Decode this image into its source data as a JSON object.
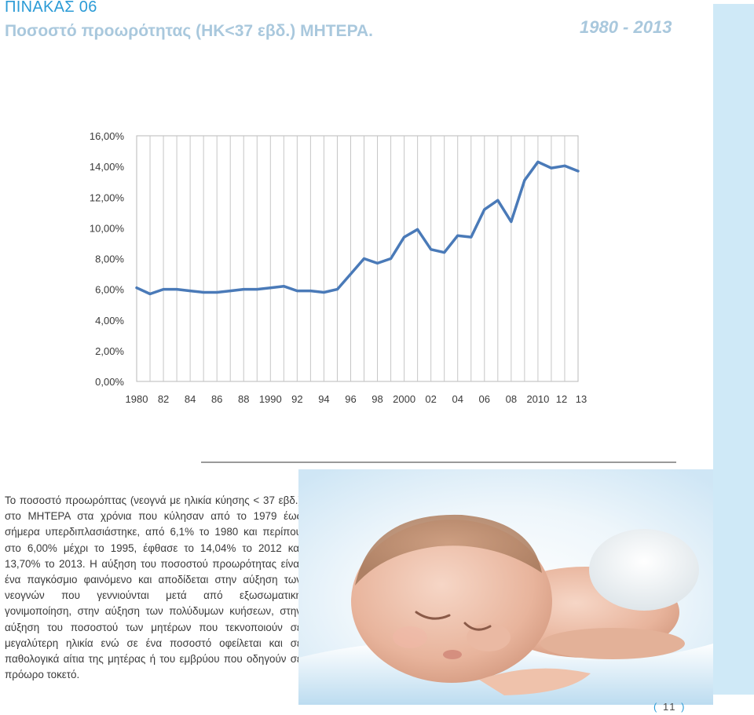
{
  "header": {
    "table_label": "ΠΙΝΑΚΑΣ 06",
    "subtitle": "Ποσοστό προωρότητας (ΗΚ<37 εβδ.) ΜΗΤΕΡΑ.",
    "year_range": "1980 - 2013"
  },
  "chart_data": {
    "type": "line",
    "title": "",
    "xlabel": "",
    "ylabel": "",
    "ylim": [
      0,
      16
    ],
    "grid": "vertical",
    "y_ticks": [
      0,
      2,
      4,
      6,
      8,
      10,
      12,
      14,
      16
    ],
    "y_tick_labels": [
      "0,00%",
      "2,00%",
      "4,00%",
      "6,00%",
      "8,00%",
      "10,00%",
      "12,00%",
      "14,00%",
      "16,00%"
    ],
    "x_tick_labels": [
      "1980",
      "82",
      "84",
      "86",
      "88",
      "1990",
      "92",
      "94",
      "96",
      "98",
      "2000",
      "02",
      "04",
      "06",
      "08",
      "2010",
      "12",
      "13"
    ],
    "x": [
      1980,
      1981,
      1982,
      1983,
      1984,
      1985,
      1986,
      1987,
      1988,
      1989,
      1990,
      1991,
      1992,
      1993,
      1994,
      1995,
      1996,
      1997,
      1998,
      1999,
      2000,
      2001,
      2002,
      2003,
      2004,
      2005,
      2006,
      2007,
      2008,
      2009,
      2010,
      2011,
      2012,
      2013
    ],
    "series": [
      {
        "values": [
          6.1,
          5.7,
          6.0,
          6.0,
          5.9,
          5.8,
          5.8,
          5.9,
          6.0,
          6.0,
          6.1,
          6.2,
          5.9,
          5.9,
          5.8,
          6.0,
          7.0,
          8.0,
          7.7,
          8.0,
          9.4,
          9.9,
          8.6,
          8.4,
          9.5,
          9.4,
          11.2,
          11.8,
          10.4,
          13.1,
          14.3,
          13.9,
          14.04,
          13.7
        ],
        "color": "#4a7ab8"
      }
    ]
  },
  "caption": "Το ποσοστό προωρόπτας (νεογνά με ηλικία κύησης < 37 εβδ.) στο ΜΗΤΕΡΑ στα χρόνια που κύλησαν από το 1979 έως σήμερα υπερδιπλασιάστηκε, από 6,1% το 1980 και περίπου στο 6,00% μέχρι το 1995, έφθασε το 14,04% το 2012 και 13,70% το 2013. Η αύξηση του ποσοστού προωρότητας είναι ένα παγκόσμιο φαινόμενο και αποδίδεται στην αύξηση των νεογνών που γεννιούνται μετά από εξωσωματική γονιμοποίηση, στην αύξηση των πολύδυμων κυήσεων, στην αύξηση του ποσοστού των μητέρων που τεκνοποιούν σε μεγαλύτερη ηλικία ενώ σε ένα ποσοστό οφείλεται και σε παθολογικά αίτια της μητέρας ή του εμβρύου που οδηγούν σε πρόωρο τοκετό.",
  "page_number": "11",
  "colors": {
    "accent": "#2b9bd6",
    "subtitle": "#a9c8dd",
    "line": "#4a7ab8",
    "side_band": "#cfe9f7"
  }
}
